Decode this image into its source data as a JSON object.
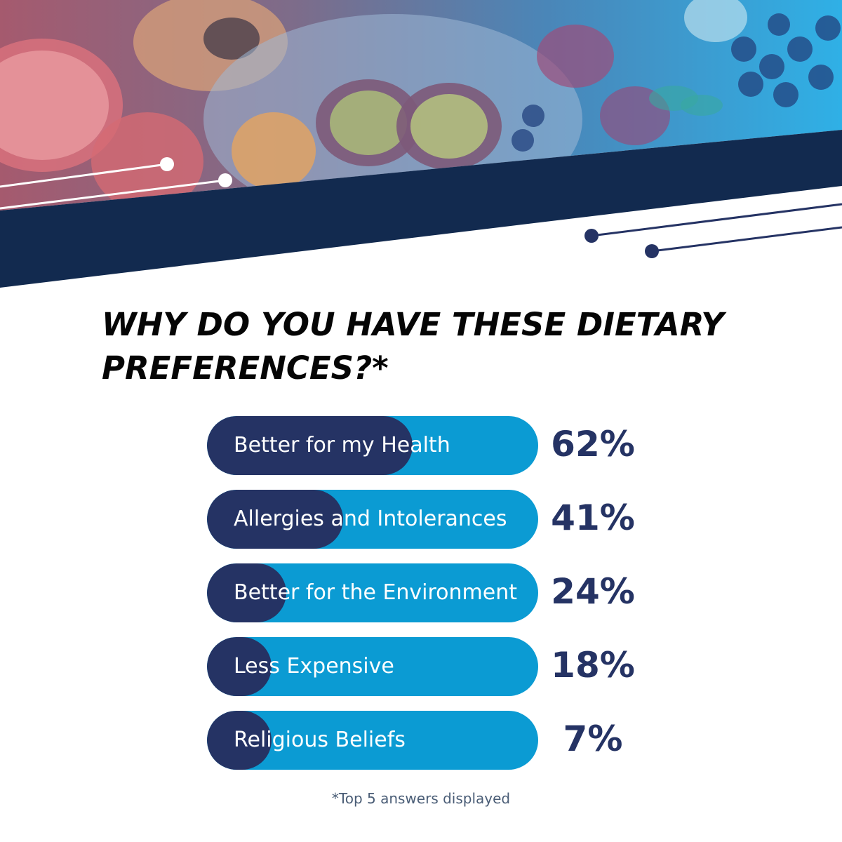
{
  "title": "WHY DO YOU HAVE THESE DIETARY PREFERENCES?*",
  "footnote": "*Top 5 answers displayed",
  "colors": {
    "navy": "#253364",
    "band": "#122a4f",
    "bar_track": "#0b9bd3",
    "value_text": "#253364",
    "title_text": "#050505"
  },
  "chart_data": {
    "type": "bar",
    "orientation": "horizontal",
    "categories": [
      "Better for my Health",
      "Allergies and Intolerances",
      "Better for the Environment",
      "Less Expensive",
      "Religious Beliefs"
    ],
    "values": [
      62,
      41,
      24,
      18,
      7
    ],
    "value_labels": [
      "62%",
      "41%",
      "24%",
      "18%",
      "7%"
    ],
    "xlim": [
      0,
      100
    ],
    "grid": false,
    "legend": "none"
  }
}
